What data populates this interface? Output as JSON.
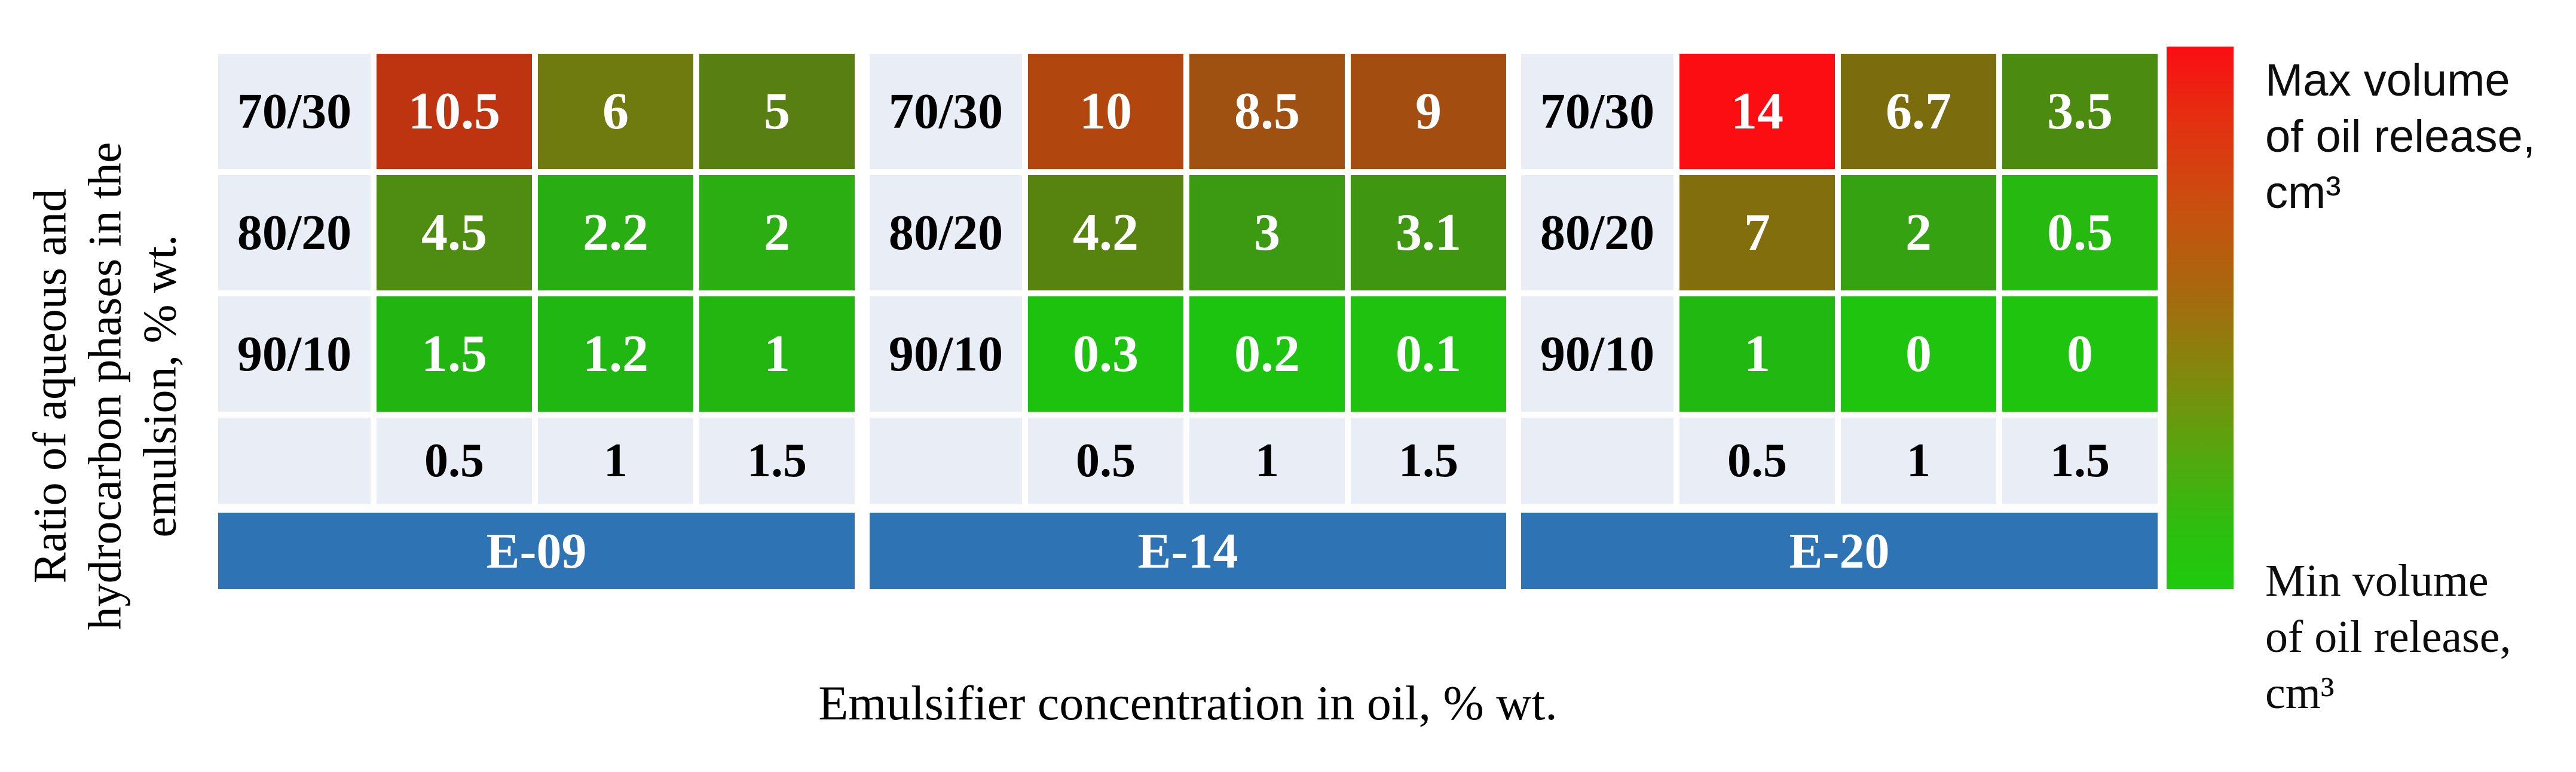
{
  "y_axis_label_lines": [
    "Ratio of aqueous and",
    "hydrocarbon phases in the",
    "emulsion, % wt."
  ],
  "x_axis_label": "Emulsifier concentration in oil, % wt.",
  "legend": {
    "max_label_lines": [
      "Max volume",
      "of oil release,",
      "cm³"
    ],
    "min_label_lines": [
      "Min volume",
      "of oil release,",
      "cm³"
    ],
    "top_color": "#fb0d12",
    "bottom_color": "#1fca0e",
    "gradient_css": "linear-gradient(180deg,#fb0d12 0%,#e33111 14%,#c8500f 30%,#a66a0e 46%,#82880d 60%,#55a70f 75%,#2bc00f 90%,#1fca0e 100%)"
  },
  "colors": {
    "label_bg": "#e9edf6",
    "band_bg": "#2e74b5",
    "value_text": "#ffffff",
    "label_text": "#000000"
  },
  "chart_data": {
    "type": "heatmap",
    "x_values": [
      "0.5",
      "1",
      "1.5"
    ],
    "y_values": [
      "70/30",
      "80/20",
      "90/10"
    ],
    "xlabel": "Emulsifier concentration in oil, % wt.",
    "ylabel": "Ratio of aqueous and hydrocarbon phases in the emulsion, % wt.",
    "colorbar_max_label": "Max volume of oil release, cm³",
    "colorbar_min_label": "Min volume of oil release, cm³",
    "legend_position": "right",
    "groups": [
      {
        "name": "E-09",
        "values": [
          [
            10.5,
            6,
            5
          ],
          [
            4.5,
            2.2,
            2
          ],
          [
            1.5,
            1.2,
            1
          ]
        ],
        "rows": [
          {
            "cells": [
              {
                "value": "10.5",
                "color": "#bf3410"
              },
              {
                "value": "6",
                "color": "#6f7a0f"
              },
              {
                "value": "5",
                "color": "#587f11"
              }
            ]
          },
          {
            "cells": [
              {
                "value": "4.5",
                "color": "#4e8c12"
              },
              {
                "value": "2.2",
                "color": "#28ad12"
              },
              {
                "value": "2",
                "color": "#2aae11"
              }
            ]
          },
          {
            "cells": [
              {
                "value": "1.5",
                "color": "#22b512"
              },
              {
                "value": "1.2",
                "color": "#21b713"
              },
              {
                "value": "1",
                "color": "#23b611"
              }
            ]
          }
        ]
      },
      {
        "name": "E-14",
        "values": [
          [
            10,
            8.5,
            9
          ],
          [
            4.2,
            3,
            3.1
          ],
          [
            0.3,
            0.2,
            0.1
          ]
        ],
        "rows": [
          {
            "cells": [
              {
                "value": "10",
                "color": "#b2460f"
              },
              {
                "value": "8.5",
                "color": "#9e5110"
              },
              {
                "value": "9",
                "color": "#a44d10"
              }
            ]
          },
          {
            "cells": [
              {
                "value": "4.2",
                "color": "#57840f"
              },
              {
                "value": "3",
                "color": "#3b9a11"
              },
              {
                "value": "3.1",
                "color": "#3f9711"
              }
            ]
          },
          {
            "cells": [
              {
                "value": "0.3",
                "color": "#1dc20f"
              },
              {
                "value": "0.2",
                "color": "#1cc30f"
              },
              {
                "value": "0.1",
                "color": "#1ec20f"
              }
            ]
          }
        ]
      },
      {
        "name": "E-20",
        "values": [
          [
            14,
            6.7,
            3.5
          ],
          [
            7,
            2,
            0.5
          ],
          [
            1,
            0,
            0
          ]
        ],
        "rows": [
          {
            "cells": [
              {
                "value": "14",
                "color": "#fc0d12"
              },
              {
                "value": "6.7",
                "color": "#7b6c0e"
              },
              {
                "value": "3.5",
                "color": "#4a8b10"
              }
            ]
          },
          {
            "cells": [
              {
                "value": "7",
                "color": "#826e0d"
              },
              {
                "value": "2",
                "color": "#35a211"
              },
              {
                "value": "0.5",
                "color": "#26b910"
              }
            ]
          },
          {
            "cells": [
              {
                "value": "1",
                "color": "#21b911"
              },
              {
                "value": "0",
                "color": "#1ec40e"
              },
              {
                "value": "0",
                "color": "#1ec40e"
              }
            ]
          }
        ]
      }
    ]
  }
}
